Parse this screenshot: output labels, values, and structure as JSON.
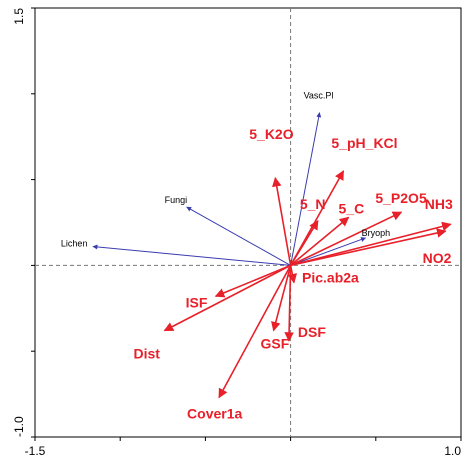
{
  "chart_data": {
    "type": "scatter",
    "subtype": "ordination-biplot",
    "xlim": [
      -1.5,
      1.0
    ],
    "ylim": [
      -1.0,
      1.5
    ],
    "x_tick_labels": [
      "-1.5",
      "1.0"
    ],
    "y_tick_labels": [
      "1.5",
      "-1.0"
    ],
    "x_minor_ticks": [
      -1.5,
      -1.0,
      -0.5,
      0.0,
      0.5,
      1.0
    ],
    "y_minor_ticks": [
      -1.0,
      -0.5,
      0.0,
      0.5,
      1.0,
      1.5
    ],
    "zero_lines": "dashed",
    "grid": false,
    "colors": {
      "species": "#3b3bb0",
      "environment": "#e8202a",
      "axis": "#000000",
      "zero_line": "#777777"
    },
    "species": [
      {
        "label": "Vasc.Pl",
        "x": 0.17,
        "y": 0.89
      },
      {
        "label": "Fungi",
        "x": -0.61,
        "y": 0.34
      },
      {
        "label": "Lichen",
        "x": -1.16,
        "y": 0.11
      },
      {
        "label": "Bryoph",
        "x": 0.44,
        "y": 0.16
      }
    ],
    "environment": [
      {
        "label": "5_K2O",
        "x": -0.09,
        "y": 0.51
      },
      {
        "label": "5_pH_KCl",
        "x": 0.31,
        "y": 0.55
      },
      {
        "label": "5_N",
        "x": 0.16,
        "y": 0.26
      },
      {
        "label": "5_C",
        "x": 0.34,
        "y": 0.28
      },
      {
        "label": "5_P2O5",
        "x": 0.65,
        "y": 0.31
      },
      {
        "label": "NH3",
        "x": 0.94,
        "y": 0.24
      },
      {
        "label": "NO2",
        "x": 0.91,
        "y": 0.2
      },
      {
        "label": "Pic.ab2a",
        "x": 0.02,
        "y": -0.1
      },
      {
        "label": "ISF",
        "x": -0.44,
        "y": -0.18
      },
      {
        "label": "Dist",
        "x": -0.74,
        "y": -0.38
      },
      {
        "label": "GSF",
        "x": -0.1,
        "y": -0.38
      },
      {
        "label": "DSF",
        "x": -0.01,
        "y": -0.44
      },
      {
        "label": "Cover1a",
        "x": -0.42,
        "y": -0.77
      }
    ]
  }
}
